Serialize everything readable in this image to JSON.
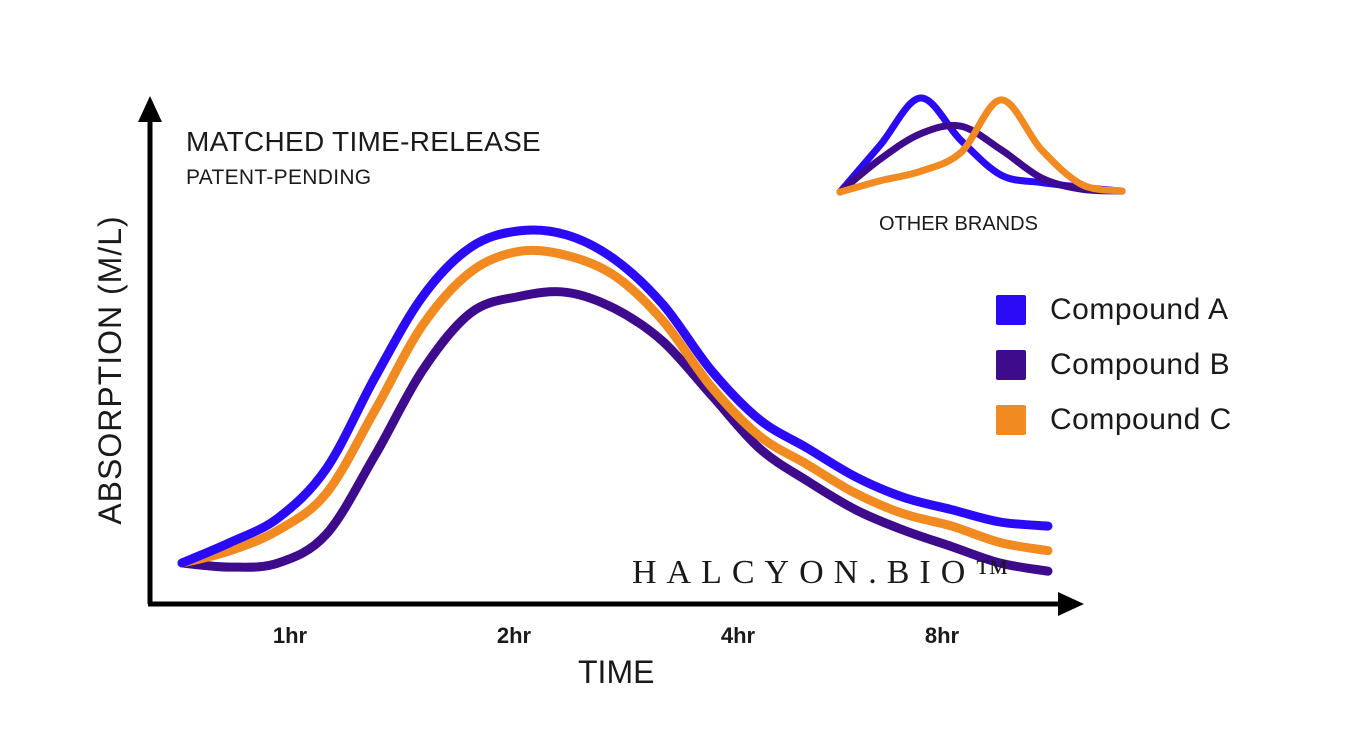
{
  "chart_data": {
    "type": "line",
    "title": "MATCHED TIME-RELEASE",
    "subtitle": "PATENT-PENDING",
    "xlabel": "TIME",
    "ylabel": "ABSORPTION (M/L)",
    "x_ticks": [
      "1hr",
      "2hr",
      "4hr",
      "8hr"
    ],
    "x": [
      0,
      0.25,
      0.5,
      0.75,
      1.0,
      1.25,
      1.5,
      1.75,
      2.0,
      2.25,
      2.5,
      2.75,
      3.0,
      3.25,
      3.5,
      3.75,
      4.0,
      4.25,
      4.5
    ],
    "xlim": [
      0,
      4.5
    ],
    "ylim": [
      0,
      1.0
    ],
    "series": [
      {
        "name": "Compound A",
        "color": "#2b0bf5",
        "values": [
          0.1,
          0.15,
          0.21,
          0.33,
          0.55,
          0.75,
          0.87,
          0.91,
          0.9,
          0.84,
          0.73,
          0.57,
          0.45,
          0.38,
          0.31,
          0.26,
          0.23,
          0.2,
          0.19
        ]
      },
      {
        "name": "Compound B",
        "color": "#3e0b8c",
        "values": [
          0.1,
          0.09,
          0.1,
          0.17,
          0.36,
          0.57,
          0.71,
          0.75,
          0.76,
          0.72,
          0.64,
          0.51,
          0.38,
          0.3,
          0.23,
          0.18,
          0.14,
          0.1,
          0.08
        ]
      },
      {
        "name": "Compound C",
        "color": "#f28a22",
        "values": [
          0.1,
          0.13,
          0.18,
          0.27,
          0.47,
          0.68,
          0.81,
          0.86,
          0.85,
          0.8,
          0.69,
          0.53,
          0.41,
          0.34,
          0.27,
          0.22,
          0.19,
          0.15,
          0.13
        ]
      }
    ],
    "grid": false,
    "legend": "right"
  },
  "inset": {
    "label": "OTHER BRANDS",
    "series": [
      {
        "name": "Compound A",
        "color": "#2b0bf5",
        "values": [
          0.0,
          0.5,
          1.0,
          0.55,
          0.18,
          0.1,
          0.05,
          0.01
        ]
      },
      {
        "name": "Compound B",
        "color": "#3e0b8c",
        "values": [
          0.0,
          0.35,
          0.62,
          0.7,
          0.45,
          0.15,
          0.03,
          0.01
        ]
      },
      {
        "name": "Compound C",
        "color": "#f28a22",
        "values": [
          0.0,
          0.12,
          0.22,
          0.42,
          0.98,
          0.45,
          0.08,
          0.01
        ]
      }
    ]
  },
  "brand": "HALCYON.BIO™"
}
